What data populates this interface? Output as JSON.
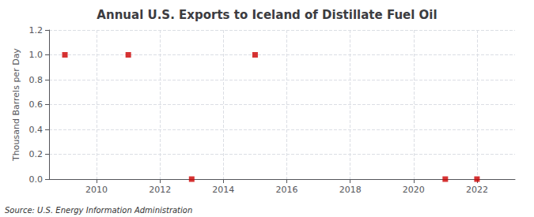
{
  "chart_data": {
    "type": "scatter",
    "title": "Annual U.S. Exports to Iceland of Distillate Fuel Oil",
    "ylabel": "Thousand Barrels per Day",
    "annotations": [
      "Source: U.S. Energy Information Administration"
    ],
    "x": [
      2009,
      2011,
      2013,
      2015,
      2021,
      2022
    ],
    "values": [
      1.0,
      1.0,
      0.0,
      1.0,
      0.0,
      0.0
    ],
    "color": "#cc0000",
    "marker": "square",
    "xlim": [
      2008.5,
      2023.2
    ],
    "xticks": [
      2010,
      2012,
      2014,
      2016,
      2018,
      2020,
      2022
    ],
    "ylim": [
      0.0,
      1.2
    ],
    "yticks": [
      {
        "value": 0,
        "label": "0.0"
      },
      0.2,
      0.4,
      0.6,
      0.8,
      {
        "value": 1,
        "label": "1.0"
      },
      1.2
    ],
    "grid": true
  }
}
